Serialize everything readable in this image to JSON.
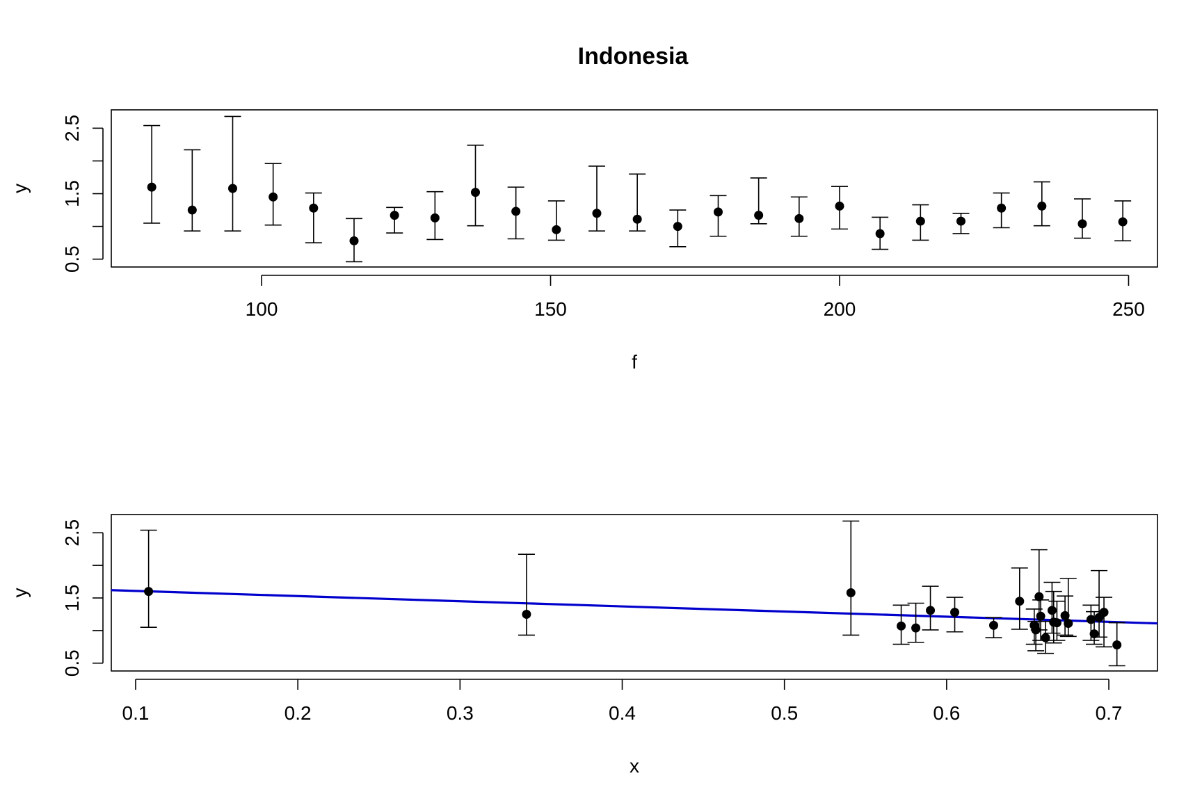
{
  "title": "Indonesia",
  "colors": {
    "fit_line": "#0000CD",
    "points": "#000000"
  },
  "chart_data": [
    {
      "type": "scatter",
      "xlabel": "f",
      "ylabel": "y",
      "xlim": [
        74,
        255
      ],
      "ylim": [
        0.38,
        2.78
      ],
      "xticks": [
        100,
        150,
        200,
        250
      ],
      "xtick_labels": [
        "100",
        "150",
        "200",
        "250"
      ],
      "yticks": [
        0.5,
        1.0,
        1.5,
        2.0,
        2.5
      ],
      "ytick_labels": [
        "0.5",
        "",
        "1.5",
        "",
        "2.5"
      ],
      "grid": false,
      "error_bars": true,
      "series": [
        {
          "x": [
            81,
            88,
            95,
            102,
            109,
            116,
            123,
            130,
            137,
            144,
            151,
            158,
            165,
            172,
            179,
            186,
            193,
            200,
            207,
            214,
            221,
            228,
            235,
            242,
            249
          ],
          "y": [
            1.6,
            1.25,
            1.58,
            1.45,
            1.28,
            0.78,
            1.17,
            1.13,
            1.52,
            1.23,
            0.95,
            1.2,
            1.11,
            1.0,
            1.22,
            1.17,
            1.12,
            1.31,
            0.89,
            1.08,
            1.08,
            1.28,
            1.31,
            1.04,
            1.07
          ],
          "y_low": [
            1.05,
            0.93,
            0.93,
            1.02,
            0.75,
            0.46,
            0.9,
            0.8,
            1.01,
            0.81,
            0.79,
            0.93,
            0.93,
            0.69,
            0.85,
            1.04,
            0.85,
            0.96,
            0.65,
            0.79,
            0.89,
            0.98,
            1.01,
            0.82,
            0.78
          ],
          "y_high": [
            2.54,
            2.17,
            2.68,
            1.96,
            1.51,
            1.12,
            1.29,
            1.53,
            2.24,
            1.6,
            1.39,
            1.92,
            1.8,
            1.25,
            1.47,
            1.74,
            1.45,
            1.61,
            1.14,
            1.33,
            1.2,
            1.51,
            1.68,
            1.42,
            1.39
          ]
        }
      ]
    },
    {
      "type": "scatter",
      "xlabel": "x",
      "ylabel": "y",
      "xlim": [
        0.085,
        0.73
      ],
      "ylim": [
        0.38,
        2.78
      ],
      "xticks": [
        0.1,
        0.2,
        0.3,
        0.4,
        0.5,
        0.6,
        0.7
      ],
      "xtick_labels": [
        "0.1",
        "0.2",
        "0.3",
        "0.4",
        "0.5",
        "0.6",
        "0.7"
      ],
      "yticks": [
        0.5,
        1.0,
        1.5,
        2.0,
        2.5
      ],
      "ytick_labels": [
        "0.5",
        "",
        "1.5",
        "",
        "2.5"
      ],
      "grid": false,
      "error_bars": true,
      "series": [
        {
          "x": [
            0.108,
            0.341,
            0.541,
            0.572,
            0.581,
            0.59,
            0.605,
            0.629,
            0.645,
            0.654,
            0.655,
            0.657,
            0.658,
            0.661,
            0.665,
            0.666,
            0.668,
            0.673,
            0.675,
            0.689,
            0.691,
            0.694,
            0.697,
            0.705
          ],
          "y": [
            1.6,
            1.25,
            1.58,
            1.07,
            1.04,
            1.31,
            1.28,
            1.08,
            1.45,
            1.08,
            1.01,
            1.52,
            1.22,
            0.89,
            1.31,
            1.13,
            1.12,
            1.23,
            1.11,
            1.17,
            0.95,
            1.2,
            1.28,
            0.78
          ],
          "y_low": [
            1.05,
            0.93,
            0.93,
            0.79,
            0.82,
            1.01,
            0.98,
            0.89,
            1.02,
            0.79,
            0.69,
            1.01,
            0.85,
            0.65,
            0.96,
            0.81,
            0.85,
            0.93,
            0.91,
            0.85,
            0.79,
            0.9,
            0.75,
            0.46
          ],
          "y_high": [
            2.54,
            2.17,
            2.68,
            1.39,
            1.42,
            1.68,
            1.51,
            1.2,
            1.96,
            1.33,
            1.14,
            2.24,
            1.47,
            1.14,
            1.74,
            1.6,
            1.45,
            1.53,
            1.8,
            1.39,
            1.29,
            1.92,
            1.51,
            1.12
          ]
        }
      ],
      "fit_line": {
        "x": [
          0.085,
          0.73
        ],
        "y": [
          1.62,
          1.11
        ]
      }
    }
  ]
}
